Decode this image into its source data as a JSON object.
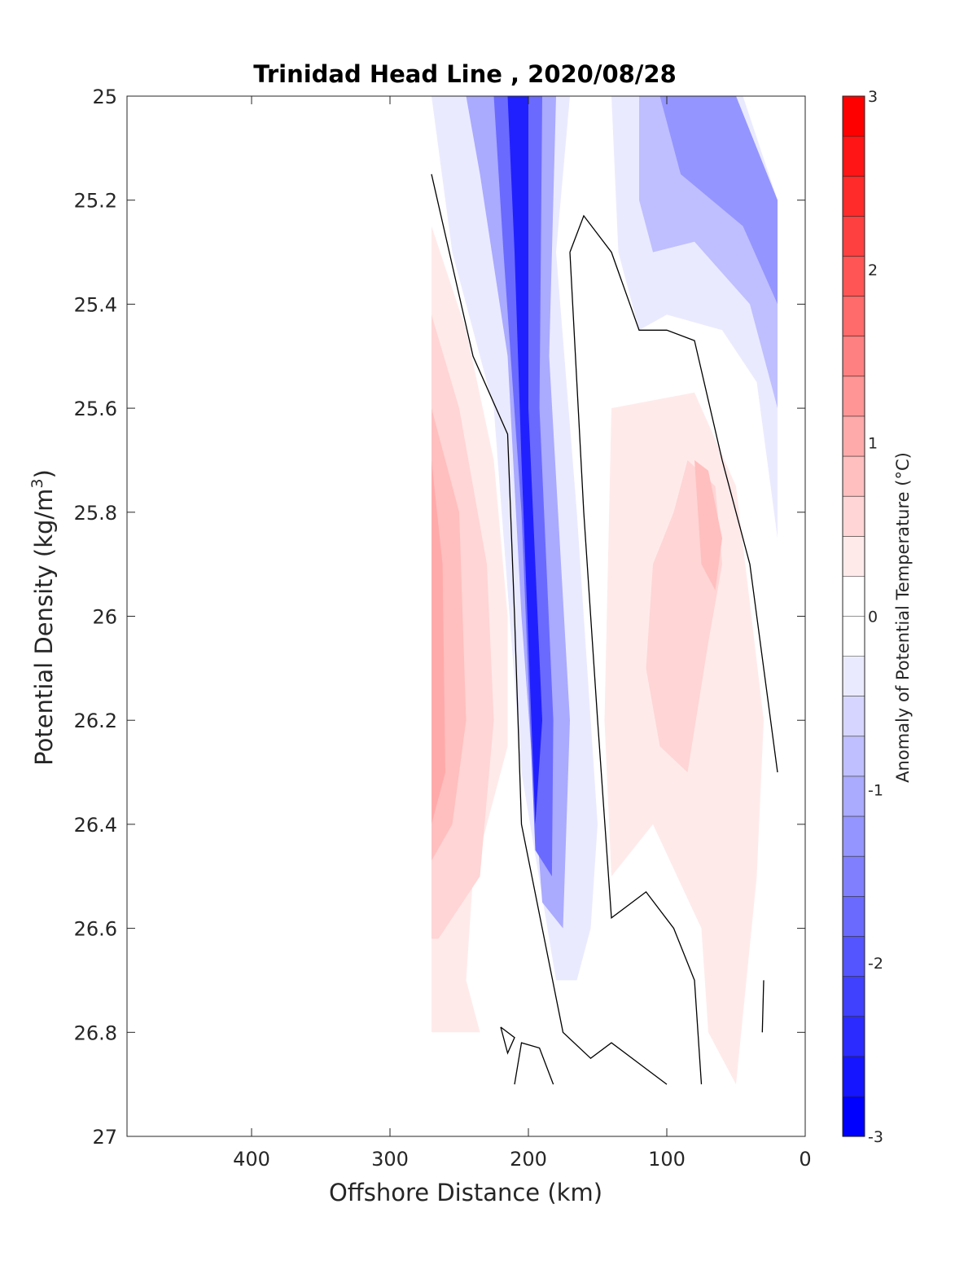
{
  "chart_data": {
    "type": "contour",
    "title": "Trinidad Head Line , 2020/08/28",
    "xlabel": "Offshore Distance (km)",
    "ylabel": "Potential Density (kg/m",
    "ylabel_sup": "3",
    "ylabel_close": ")",
    "xlim": [
      490,
      0
    ],
    "x_reversed": true,
    "ylim": [
      25,
      27
    ],
    "y_reversed": true,
    "x_ticks": [
      400,
      300,
      200,
      100,
      0
    ],
    "x_tick_labels": [
      "400",
      "300",
      "200",
      "100",
      "0"
    ],
    "y_ticks": [
      25,
      25.2,
      25.4,
      25.6,
      25.8,
      26,
      26.2,
      26.4,
      26.6,
      26.8,
      27
    ],
    "y_tick_labels": [
      "25",
      "25.2",
      "25.4",
      "25.6",
      "25.8",
      "26",
      "26.2",
      "26.4",
      "26.6",
      "26.8",
      "27"
    ],
    "colorbar": {
      "label": "Anomaly of Potential Temperature (°C)",
      "range": [
        -3,
        3
      ],
      "levels": 24,
      "ticks": [
        3,
        2,
        1,
        0,
        -1,
        -2,
        -3
      ],
      "tick_labels": [
        "3",
        "2",
        "1",
        "0",
        "-1",
        "-2",
        "-3"
      ],
      "colors": [
        "#0000ff",
        "#1515ff",
        "#2b2bff",
        "#4040ff",
        "#5555ff",
        "#6a6aff",
        "#8080ff",
        "#9595ff",
        "#aaaaff",
        "#bfbfff",
        "#d5d5ff",
        "#eaeaff",
        "#ffffff",
        "#ffffff",
        "#ffeaea",
        "#ffd5d5",
        "#ffbfbf",
        "#ffaaaa",
        "#ff9595",
        "#ff8080",
        "#ff6a6a",
        "#ff5555",
        "#ff4040",
        "#ff2b2b",
        "#ff1515",
        "#ff0000"
      ]
    },
    "regions": [
      {
        "name": "warm-offshore-outer",
        "anomaly": 0.25,
        "color": "#ffeaea",
        "outline": [
          [
            270,
            25.25
          ],
          [
            245,
            25.45
          ],
          [
            225,
            25.7
          ],
          [
            215,
            26
          ],
          [
            215,
            26.25
          ],
          [
            240,
            26.5
          ],
          [
            245,
            26.7
          ],
          [
            235,
            26.8
          ],
          [
            270,
            26.8
          ]
        ]
      },
      {
        "name": "warm-offshore-mid",
        "anomaly": 0.5,
        "color": "#ffd5d5",
        "outline": [
          [
            270,
            25.42
          ],
          [
            250,
            25.6
          ],
          [
            230,
            25.9
          ],
          [
            225,
            26.2
          ],
          [
            235,
            26.5
          ],
          [
            265,
            26.62
          ],
          [
            270,
            26.62
          ]
        ]
      },
      {
        "name": "warm-offshore-core",
        "anomaly": 0.75,
        "color": "#ffbfbf",
        "outline": [
          [
            270,
            25.6
          ],
          [
            250,
            25.8
          ],
          [
            245,
            26.2
          ],
          [
            255,
            26.4
          ],
          [
            270,
            26.47
          ]
        ]
      },
      {
        "name": "warm-offshore-max",
        "anomaly": 1.0,
        "color": "#ffaaaa",
        "outline": [
          [
            270,
            25.7
          ],
          [
            262,
            25.9
          ],
          [
            260,
            26.3
          ],
          [
            270,
            26.4
          ]
        ]
      },
      {
        "name": "cold-core-outer",
        "anomaly": -0.25,
        "color": "#eaeaff",
        "outline": [
          [
            270,
            25
          ],
          [
            170,
            25
          ],
          [
            180,
            25.3
          ],
          [
            165,
            25.8
          ],
          [
            150,
            26.4
          ],
          [
            155,
            26.6
          ],
          [
            165,
            26.7
          ],
          [
            180,
            26.7
          ],
          [
            205,
            26.3
          ],
          [
            225,
            25.6
          ],
          [
            255,
            25.3
          ]
        ]
      },
      {
        "name": "cold-core-mid",
        "anomaly": -1.0,
        "color": "#aaaaff",
        "outline": [
          [
            245,
            25
          ],
          [
            180,
            25
          ],
          [
            185,
            25.5
          ],
          [
            170,
            26.2
          ],
          [
            175,
            26.6
          ],
          [
            190,
            26.55
          ],
          [
            205,
            26.0
          ],
          [
            215,
            25.5
          ],
          [
            235,
            25.15
          ]
        ]
      },
      {
        "name": "cold-core-inner",
        "anomaly": -1.75,
        "color": "#6a6aff",
        "outline": [
          [
            225,
            25
          ],
          [
            190,
            25
          ],
          [
            192,
            25.6
          ],
          [
            182,
            26.2
          ],
          [
            183,
            26.5
          ],
          [
            195,
            26.45
          ],
          [
            205,
            25.8
          ],
          [
            218,
            25.3
          ]
        ]
      },
      {
        "name": "cold-core-max",
        "anomaly": -2.5,
        "color": "#2020ff",
        "outline": [
          [
            215,
            25
          ],
          [
            200,
            25
          ],
          [
            200,
            25.6
          ],
          [
            190,
            26.2
          ],
          [
            195,
            26.4
          ],
          [
            205,
            25.7
          ],
          [
            210,
            25.3
          ]
        ]
      },
      {
        "name": "cold-nearshore-outer",
        "anomaly": -0.25,
        "color": "#eaeaff",
        "outline": [
          [
            140,
            25
          ],
          [
            45,
            25
          ],
          [
            20,
            25.2
          ],
          [
            20,
            25.85
          ],
          [
            35,
            25.55
          ],
          [
            60,
            25.45
          ],
          [
            100,
            25.42
          ],
          [
            120,
            25.45
          ],
          [
            135,
            25.3
          ]
        ]
      },
      {
        "name": "cold-nearshore-mid",
        "anomaly": -0.75,
        "color": "#bfbfff",
        "outline": [
          [
            120,
            25
          ],
          [
            50,
            25
          ],
          [
            20,
            25.2
          ],
          [
            20,
            25.6
          ],
          [
            40,
            25.4
          ],
          [
            80,
            25.28
          ],
          [
            110,
            25.3
          ],
          [
            120,
            25.2
          ]
        ]
      },
      {
        "name": "cold-nearshore-inner",
        "anomaly": -1.25,
        "color": "#9595ff",
        "outline": [
          [
            105,
            25
          ],
          [
            50,
            25
          ],
          [
            20,
            25.2
          ],
          [
            20,
            25.4
          ],
          [
            45,
            25.25
          ],
          [
            90,
            25.15
          ]
        ]
      },
      {
        "name": "warm-nearshore-outer",
        "anomaly": 0.25,
        "color": "#ffeaea",
        "outline": [
          [
            140,
            25.6
          ],
          [
            80,
            25.57
          ],
          [
            50,
            25.75
          ],
          [
            30,
            26.2
          ],
          [
            35,
            26.5
          ],
          [
            50,
            26.9
          ],
          [
            70,
            26.8
          ],
          [
            75,
            26.6
          ],
          [
            110,
            26.4
          ],
          [
            140,
            26.5
          ],
          [
            145,
            26.2
          ]
        ]
      },
      {
        "name": "warm-nearshore-mid",
        "anomaly": 0.5,
        "color": "#ffd5d5",
        "outline": [
          [
            110,
            25.9
          ],
          [
            95,
            25.8
          ],
          [
            85,
            25.7
          ],
          [
            65,
            25.75
          ],
          [
            60,
            25.9
          ],
          [
            70,
            26.05
          ],
          [
            85,
            26.3
          ],
          [
            105,
            26.25
          ],
          [
            115,
            26.1
          ]
        ]
      },
      {
        "name": "warm-nearshore-core",
        "anomaly": 0.75,
        "color": "#ffbfbf",
        "outline": [
          [
            80,
            25.7
          ],
          [
            70,
            25.72
          ],
          [
            60,
            25.85
          ],
          [
            65,
            25.95
          ],
          [
            75,
            25.9
          ]
        ]
      }
    ],
    "zero_contours": [
      {
        "name": "zero-contour-offshore",
        "points": [
          [
            270,
            25.15
          ],
          [
            240,
            25.5
          ],
          [
            215,
            25.65
          ],
          [
            210,
            26.0
          ],
          [
            205,
            26.4
          ],
          [
            190,
            26.6
          ],
          [
            175,
            26.8
          ],
          [
            155,
            26.85
          ],
          [
            140,
            26.82
          ],
          [
            115,
            26.87
          ],
          [
            100,
            26.9
          ]
        ]
      },
      {
        "name": "zero-contour-middle",
        "points": [
          [
            170,
            25.3
          ],
          [
            160,
            25.23
          ],
          [
            140,
            25.3
          ],
          [
            120,
            25.45
          ],
          [
            100,
            25.45
          ],
          [
            80,
            25.47
          ],
          [
            60,
            25.7
          ],
          [
            40,
            25.9
          ],
          [
            20,
            26.3
          ]
        ]
      },
      {
        "name": "zero-contour-inner",
        "points": [
          [
            170,
            25.3
          ],
          [
            160,
            25.8
          ],
          [
            150,
            26.2
          ],
          [
            140,
            26.58
          ],
          [
            115,
            26.53
          ],
          [
            95,
            26.6
          ],
          [
            80,
            26.7
          ],
          [
            75,
            26.9
          ]
        ]
      },
      {
        "name": "zero-contour-bottom",
        "points": [
          [
            210,
            26.9
          ],
          [
            205,
            26.82
          ],
          [
            192,
            26.83
          ],
          [
            182,
            26.9
          ]
        ]
      },
      {
        "name": "zero-contour-triangle",
        "points": [
          [
            220,
            26.79
          ],
          [
            210,
            26.81
          ],
          [
            215,
            26.84
          ],
          [
            220,
            26.79
          ]
        ]
      },
      {
        "name": "zero-contour-edge",
        "points": [
          [
            30,
            26.7
          ],
          [
            31,
            26.8
          ]
        ]
      }
    ]
  }
}
